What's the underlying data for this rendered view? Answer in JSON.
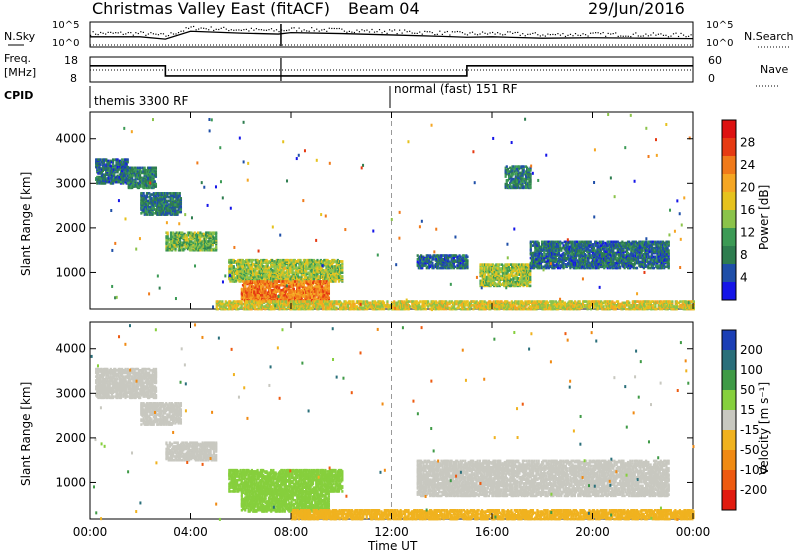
{
  "header": {
    "station": "Christmas Valley East (fitACF)",
    "beam": "Beam 04",
    "date": "29/Jun/2016"
  },
  "panels": {
    "nsky_label": "N.Sky",
    "nsky_ticks": [
      "10^5",
      "10^0"
    ],
    "nsearch_label": "N.Search",
    "nsearch_ticks": [
      "10^5",
      "10^0"
    ],
    "freq_label": "Freq.",
    "freq_unit": "[MHz]",
    "freq_ticks": [
      "18",
      "8"
    ],
    "nave_label": "Nave",
    "nave_ticks": [
      "60",
      "0"
    ],
    "cpid_label": "CPID",
    "cpid_segments": [
      {
        "text": "themis 3300 RF",
        "start_hour": 0
      },
      {
        "text": "normal (fast) 151 RF",
        "start_hour": 12
      }
    ]
  },
  "axes": {
    "ylabel": "Slant Range [km]",
    "xlabel": "Time UT",
    "x_ticks": [
      "00:00",
      "04:00",
      "08:00",
      "12:00",
      "16:00",
      "20:00",
      "00:00"
    ],
    "y_ticks": [
      "1000",
      "2000",
      "3000",
      "4000"
    ]
  },
  "colorbars": {
    "power": {
      "label": "Power [dB]",
      "ticks": [
        "4",
        "8",
        "12",
        "16",
        "20",
        "24",
        "28"
      ],
      "colors": [
        "#1515e8",
        "#1f4fa8",
        "#2e7d4f",
        "#3c9a55",
        "#8bc34a",
        "#e6c21d",
        "#f5a623",
        "#f07a1a",
        "#e63a12",
        "#dd1111"
      ]
    },
    "velocity": {
      "label": "Velocity [m s⁻¹]",
      "ticks": [
        "200",
        "100",
        "50",
        "15",
        "-15",
        "-50",
        "-100",
        "-200"
      ],
      "colors": [
        "#1b3fb5",
        "#2a6f7a",
        "#3f9a46",
        "#86cf3d",
        "#c8c8c0",
        "#f0b21f",
        "#f08a12",
        "#ee5a10",
        "#e11b0f"
      ]
    }
  },
  "chart_data": [
    {
      "type": "line",
      "title": "N.Sky / N.Search",
      "x": [
        0,
        2,
        3,
        4,
        6,
        7.5,
        8,
        10,
        12,
        14,
        15,
        16,
        18,
        20,
        22,
        24
      ],
      "y_label_scale": "log",
      "series": [
        {
          "name": "N.Sky",
          "values": [
            2.0,
            2.0,
            1.5,
            3.2,
            2.8,
            2.6,
            2.9,
            2.7,
            2.4,
            2.1,
            1.9,
            2.0,
            1.7,
            1.8,
            1.7,
            1.6
          ]
        }
      ],
      "ylim": [
        0,
        5
      ]
    },
    {
      "type": "line",
      "title": "Freq. / Nave",
      "x": [
        0,
        3,
        3,
        15,
        15,
        24
      ],
      "series": [
        {
          "name": "Freq.",
          "values": [
            14.6,
            14.6,
            10.2,
            10.2,
            14.6,
            14.6
          ]
        }
      ],
      "ylim": [
        8,
        18
      ]
    },
    {
      "type": "heatmap",
      "title": "Power [dB]",
      "xlim": [
        0,
        24
      ],
      "ylim": [
        180,
        4600
      ],
      "regions": [
        {
          "t0": 0.2,
          "t1": 1.5,
          "r0": 3000,
          "r1": 3550,
          "value": 8
        },
        {
          "t0": 1.5,
          "t1": 2.6,
          "r0": 2900,
          "r1": 3350,
          "value": 10
        },
        {
          "t0": 2.0,
          "t1": 3.6,
          "r0": 2300,
          "r1": 2800,
          "value": 9
        },
        {
          "t0": 3.0,
          "t1": 5.0,
          "r0": 1500,
          "r1": 1900,
          "value": 14
        },
        {
          "t0": 5.5,
          "t1": 10.0,
          "r0": 800,
          "r1": 1300,
          "value": 16
        },
        {
          "t0": 6.0,
          "t1": 9.5,
          "r0": 350,
          "r1": 800,
          "value": 24
        },
        {
          "t0": 5.0,
          "t1": 24.0,
          "r0": 180,
          "r1": 350,
          "value": 18
        },
        {
          "t0": 13.0,
          "t1": 15.0,
          "r0": 1100,
          "r1": 1400,
          "value": 8
        },
        {
          "t0": 15.5,
          "t1": 17.5,
          "r0": 700,
          "r1": 1200,
          "value": 16
        },
        {
          "t0": 17.5,
          "t1": 23.0,
          "r0": 1100,
          "r1": 1700,
          "value": 8
        },
        {
          "t0": 16.5,
          "t1": 17.5,
          "r0": 2900,
          "r1": 3400,
          "value": 10
        }
      ]
    },
    {
      "type": "heatmap",
      "title": "Velocity [m s^-1]",
      "xlim": [
        0,
        24
      ],
      "ylim": [
        180,
        4600
      ],
      "regions": [
        {
          "t0": 0.2,
          "t1": 2.6,
          "r0": 2900,
          "r1": 3550,
          "value": 0
        },
        {
          "t0": 2.0,
          "t1": 3.6,
          "r0": 2300,
          "r1": 2800,
          "value": 0
        },
        {
          "t0": 3.0,
          "t1": 5.0,
          "r0": 1500,
          "r1": 1900,
          "value": 0
        },
        {
          "t0": 5.5,
          "t1": 10.0,
          "r0": 800,
          "r1": 1300,
          "value": 40
        },
        {
          "t0": 6.0,
          "t1": 9.5,
          "r0": 350,
          "r1": 800,
          "value": 25
        },
        {
          "t0": 8.0,
          "t1": 24.0,
          "r0": 180,
          "r1": 400,
          "value": -40
        },
        {
          "t0": 13.0,
          "t1": 23.0,
          "r0": 700,
          "r1": 1500,
          "value": 0
        }
      ]
    }
  ]
}
